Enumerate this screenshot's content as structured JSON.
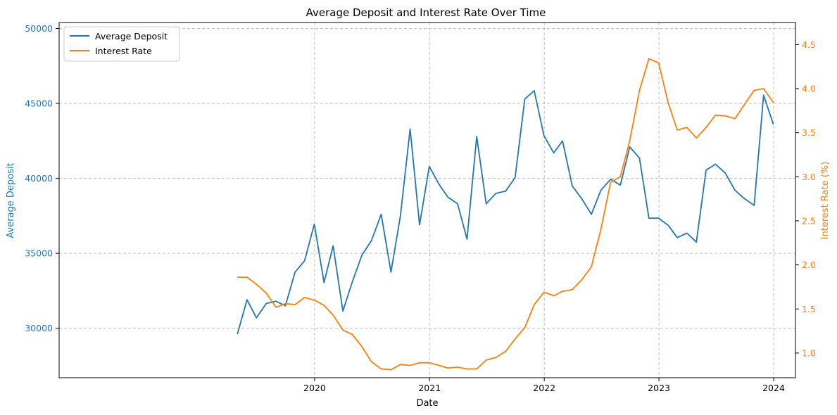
{
  "chart_data": {
    "type": "line",
    "title": "Average Deposit and Interest Rate Over Time",
    "xlabel": "Date",
    "ylabel_left": "Average Deposit",
    "ylabel_right": "Interest Rate (%)",
    "x_ticks": [
      "2020",
      "2021",
      "2022",
      "2023",
      "2024"
    ],
    "y_left_ticks": [
      30000,
      35000,
      40000,
      45000,
      50000
    ],
    "y_right_ticks": [
      "1.0",
      "1.5",
      "2.0",
      "2.5",
      "3.0",
      "3.5",
      "4.0",
      "4.5"
    ],
    "ylim_left": [
      26700,
      50400
    ],
    "ylim_right": [
      0.72,
      4.75
    ],
    "grid": true,
    "legend_position": "top-left",
    "colors": {
      "deposit": "#1f77b4",
      "rate": "#ff7f0e"
    },
    "x": [
      "2019-04-30",
      "2019-05-31",
      "2019-06-30",
      "2019-07-31",
      "2019-08-31",
      "2019-09-30",
      "2019-10-31",
      "2019-11-30",
      "2019-12-31",
      "2020-01-31",
      "2020-02-29",
      "2020-03-31",
      "2020-04-30",
      "2020-05-31",
      "2020-06-30",
      "2020-07-31",
      "2020-08-31",
      "2020-09-30",
      "2020-10-31",
      "2020-11-30",
      "2020-12-31",
      "2021-01-31",
      "2021-02-28",
      "2021-03-31",
      "2021-04-30",
      "2021-05-31",
      "2021-06-30",
      "2021-07-31",
      "2021-08-31",
      "2021-09-30",
      "2021-10-31",
      "2021-11-30",
      "2021-12-31",
      "2022-01-31",
      "2022-02-28",
      "2022-03-31",
      "2022-04-30",
      "2022-05-31",
      "2022-06-30",
      "2022-07-31",
      "2022-08-31",
      "2022-09-30",
      "2022-10-31",
      "2022-11-30",
      "2022-12-31",
      "2023-01-31",
      "2023-02-28",
      "2023-03-31",
      "2023-04-30",
      "2023-05-31",
      "2023-06-30",
      "2023-07-31",
      "2023-08-31",
      "2023-09-30",
      "2023-10-31",
      "2023-11-30",
      "2023-12-31"
    ],
    "series": [
      {
        "name": "Average Deposit",
        "axis": "left",
        "values": [
          29600,
          31900,
          30700,
          31650,
          31800,
          31500,
          33750,
          34500,
          36950,
          33050,
          35500,
          31150,
          33100,
          34900,
          35850,
          37600,
          33750,
          37500,
          43300,
          36900,
          40800,
          39600,
          38750,
          38300,
          35950,
          42800,
          38300,
          39000,
          39150,
          40050,
          45300,
          45850,
          42850,
          41700,
          42500,
          39500,
          38650,
          37600,
          39200,
          39950,
          39550,
          42100,
          41350,
          37350,
          37350,
          36850,
          36050,
          36350,
          35750,
          40550,
          40950,
          40350,
          39200,
          38650,
          38200,
          45550,
          43600
        ]
      },
      {
        "name": "Interest Rate",
        "axis": "right",
        "values": [
          1.86,
          1.86,
          1.78,
          1.68,
          1.52,
          1.56,
          1.55,
          1.63,
          1.6,
          1.54,
          1.43,
          1.26,
          1.21,
          1.07,
          0.9,
          0.82,
          0.81,
          0.87,
          0.86,
          0.89,
          0.89,
          0.86,
          0.83,
          0.84,
          0.82,
          0.82,
          0.92,
          0.95,
          1.02,
          1.16,
          1.29,
          1.55,
          1.69,
          1.65,
          1.7,
          1.72,
          1.83,
          1.98,
          2.4,
          2.94,
          3.0,
          3.41,
          3.98,
          4.34,
          4.29,
          3.83,
          3.53,
          3.56,
          3.44,
          3.56,
          3.7,
          3.69,
          3.66,
          3.82,
          3.98,
          4.0,
          3.84
        ]
      }
    ]
  }
}
